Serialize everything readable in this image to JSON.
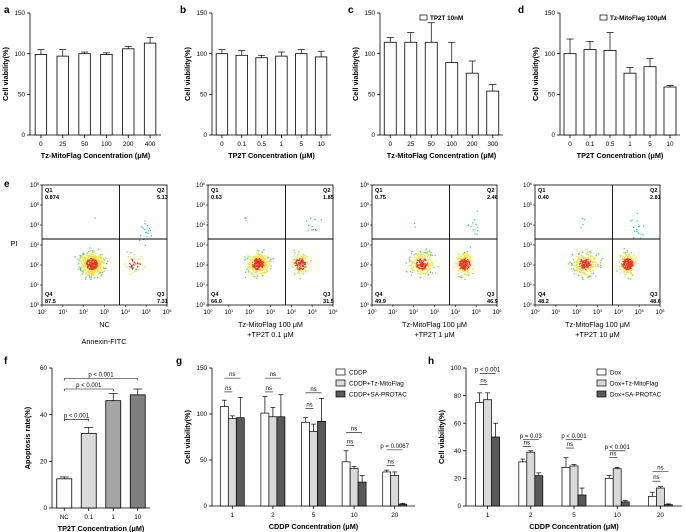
{
  "panels": {
    "a": "a",
    "b": "b",
    "c": "c",
    "d": "d",
    "e": "e",
    "f": "f",
    "g": "g",
    "h": "h"
  },
  "chart_data": [
    {
      "id": "a",
      "type": "bar",
      "title": "",
      "xlabel": "Tz-MitoFlag Concentration (μM)",
      "ylabel": "Cell viability(%)",
      "ylim": [
        0,
        150
      ],
      "yticks": [
        "0",
        "50",
        "100",
        "150"
      ],
      "categories": [
        "0",
        "25",
        "50",
        "100",
        "200",
        "400"
      ],
      "values": [
        99,
        97,
        100,
        99,
        106,
        113
      ],
      "errors": [
        6,
        8,
        2,
        2,
        3,
        7
      ],
      "legend": ""
    },
    {
      "id": "b",
      "type": "bar",
      "title": "",
      "xlabel": "TP2T Concentration (μM)",
      "ylabel": "Cell viability(%)",
      "ylim": [
        0,
        150
      ],
      "yticks": [
        "0",
        "50",
        "100",
        "150"
      ],
      "categories": [
        "0",
        "0.1",
        "0.5",
        "1",
        "5",
        "10"
      ],
      "values": [
        100,
        98,
        95,
        97,
        100,
        96
      ],
      "errors": [
        5,
        6,
        3,
        5,
        5,
        7
      ],
      "legend": ""
    },
    {
      "id": "c",
      "type": "bar",
      "title": "",
      "xlabel": "Tz-MitoFlag Concentration (μM)",
      "ylabel": "Cell viability(%)",
      "ylim": [
        0,
        150
      ],
      "yticks": [
        "0",
        "50",
        "100",
        "150"
      ],
      "categories": [
        "0",
        "25",
        "50",
        "100",
        "200",
        "300"
      ],
      "values": [
        114,
        114,
        114,
        89,
        76,
        54
      ],
      "errors": [
        6,
        12,
        24,
        25,
        15,
        8
      ],
      "legend": "TP2T 10nM"
    },
    {
      "id": "d",
      "type": "bar",
      "title": "",
      "xlabel": "TP2T Concentration (μM)",
      "ylabel": "Cell viability(%)",
      "ylim": [
        0,
        150
      ],
      "yticks": [
        "0",
        "50",
        "100",
        "150"
      ],
      "categories": [
        "0",
        "0.1",
        "0.5",
        "1",
        "5",
        "10"
      ],
      "values": [
        100,
        105,
        104,
        76,
        84,
        59
      ],
      "errors": [
        18,
        10,
        22,
        7,
        10,
        2
      ],
      "legend": "Tz-MitoFlag 100μM"
    },
    {
      "id": "e",
      "type": "scatter",
      "title": "",
      "ylabel": "PI",
      "xlabel": "Annexin-FITC",
      "x_exp": [
        "0",
        "1",
        "2",
        "3",
        "4",
        "5",
        "6"
      ],
      "y_exp": [
        "0",
        "1",
        "2",
        "3",
        "4",
        "5",
        "6"
      ],
      "plots": [
        {
          "caption": [
            "NC"
          ],
          "q1": "0.874",
          "q2": "5.13",
          "q3": "7.31",
          "q4": "87.5"
        },
        {
          "caption": [
            "Tz-MitoFlag 100 μM",
            "+TP2T 0.1 μM"
          ],
          "q1": "0.63",
          "q2": "1.85",
          "q3": "31.5",
          "q4": "66.0"
        },
        {
          "caption": [
            "Tz-MitoFlag 100 μM",
            "+TP2T 1 μM"
          ],
          "q1": "0.75",
          "q2": "2.46",
          "q3": "46.9",
          "q4": "49.9"
        },
        {
          "caption": [
            "Tz-MitoFlag 100 μM",
            "+TP2T 10 μM"
          ],
          "q1": "0.40",
          "q2": "2.81",
          "q3": "48.6",
          "q4": "48.2"
        }
      ]
    },
    {
      "id": "f",
      "type": "bar",
      "title": "",
      "xlabel": "TP2T Concentration (μM)",
      "ylabel": "Apoptosis rate(%)",
      "ylim": [
        0,
        60
      ],
      "yticks": [
        "0",
        "20",
        "40",
        "60"
      ],
      "categories": [
        "NC",
        "0.1",
        "1",
        "10"
      ],
      "values": [
        12.5,
        32,
        46,
        48.5
      ],
      "errors": [
        0.8,
        2.5,
        3,
        2.5
      ],
      "colors": [
        "#ffffff",
        "#d9d9d9",
        "#a6a6a6",
        "#7f7f7f"
      ],
      "significance": [
        "p < 0.001",
        "p < 0.001",
        "p < 0.001"
      ]
    },
    {
      "id": "g",
      "type": "bar",
      "title": "",
      "xlabel": "CDDP Concentration (μM)",
      "ylabel": "Cell viability(%)",
      "ylim": [
        0,
        150
      ],
      "yticks": [
        "0",
        "50",
        "100",
        "150"
      ],
      "categories": [
        "1",
        "2",
        "5",
        "10",
        "20"
      ],
      "series": [
        {
          "name": "CDDP",
          "color": "#ffffff",
          "values": [
            108,
            101,
            91,
            48,
            37
          ],
          "errors": [
            7,
            18,
            5,
            12,
            2
          ]
        },
        {
          "name": "CDDP+Tz-MitoFlag",
          "color": "#d9d9d9",
          "values": [
            95,
            97,
            81,
            41,
            33
          ],
          "errors": [
            3,
            10,
            8,
            2,
            4
          ]
        },
        {
          "name": "CDDP+SA-PROTAC",
          "color": "#595959",
          "values": [
            96,
            97,
            92,
            26,
            2
          ],
          "errors": [
            22,
            24,
            25,
            7,
            1
          ]
        }
      ],
      "significance": [
        "ns",
        "ns",
        "ns",
        "ns",
        "ns",
        "ns",
        "ns",
        "ns",
        "ns",
        "p = 0.0067"
      ]
    },
    {
      "id": "h",
      "type": "bar",
      "title": "",
      "xlabel": "CDDP Concentration (μM)",
      "ylabel": "Cell viability(%)",
      "ylim": [
        0,
        100
      ],
      "yticks": [
        "0",
        "20",
        "40",
        "60",
        "80",
        "100"
      ],
      "categories": [
        "1",
        "2",
        "5",
        "10",
        "20"
      ],
      "series": [
        {
          "name": "Dox",
          "color": "#ffffff",
          "values": [
            75,
            32,
            28,
            20,
            7
          ],
          "errors": [
            7,
            2,
            7,
            2,
            3
          ]
        },
        {
          "name": "Dox+Tz-MitoFlag",
          "color": "#d9d9d9",
          "values": [
            77,
            39,
            29,
            27,
            13
          ],
          "errors": [
            5,
            1,
            1,
            1,
            1
          ]
        },
        {
          "name": "Dox+SA-PROTAC",
          "color": "#595959",
          "values": [
            50,
            22,
            8,
            3,
            1
          ],
          "errors": [
            10,
            2,
            5,
            1,
            0.5
          ]
        }
      ],
      "significance": [
        "p < 0.001",
        "ns",
        "ns",
        "p = 0.03",
        "ns",
        "p < 0.001",
        "ns",
        "p < 0.001",
        "ns",
        "ns"
      ]
    }
  ]
}
